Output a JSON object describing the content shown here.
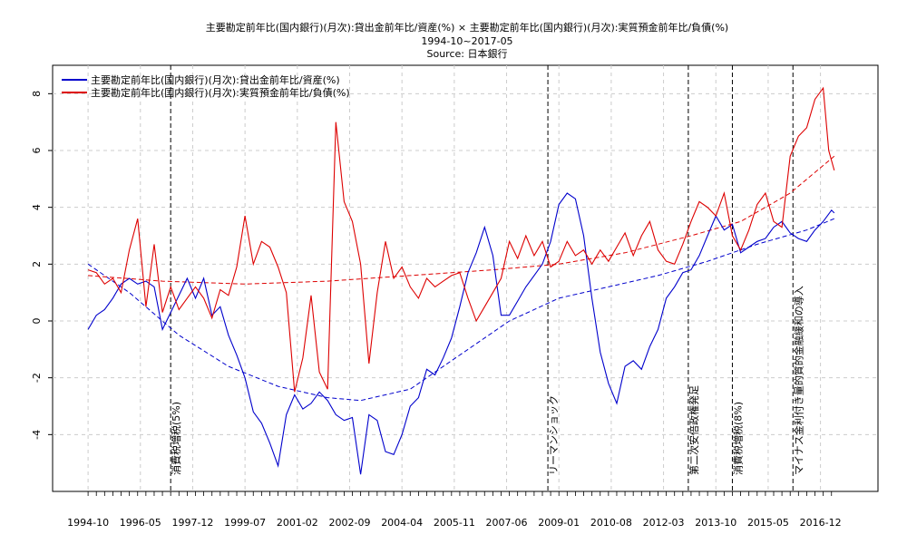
{
  "chart_data": {
    "type": "line",
    "title": "主要勘定前年比(国内銀行)(月次):貸出金前年比/資産(%) × 主要勘定前年比(国内銀行)(月次):実質預金前年比/負債(%)",
    "subtitle": "1994-10~2017-05",
    "source": "Source: 日本銀行",
    "xlabel": "",
    "ylabel": "",
    "x_range": [
      "1994-10",
      "2017-05"
    ],
    "ylim": [
      -6,
      9
    ],
    "y_ticks": [
      -4,
      -2,
      0,
      2,
      4,
      6,
      8
    ],
    "x_tick_labels": [
      "1994-10",
      "1996-05",
      "1997-12",
      "1999-07",
      "2001-02",
      "2002-09",
      "2004-04",
      "2005-11",
      "2007-06",
      "2009-01",
      "2010-08",
      "2012-03",
      "2013-10",
      "2015-05",
      "2016-12"
    ],
    "grid": true,
    "legend_position": "top-left",
    "colors": {
      "loans": "#0000cc",
      "deposits": "#dd0000",
      "event": "#000000",
      "grid": "#cccccc"
    },
    "series": [
      {
        "key": "loans",
        "name": "主要勘定前年比(国内銀行)(月次):貸出金前年比/資産(%)",
        "points": [
          [
            "1994-10",
            -0.3
          ],
          [
            "1995-01",
            0.2
          ],
          [
            "1995-04",
            0.4
          ],
          [
            "1995-07",
            0.8
          ],
          [
            "1995-10",
            1.3
          ],
          [
            "1996-01",
            1.5
          ],
          [
            "1996-04",
            1.3
          ],
          [
            "1996-07",
            1.4
          ],
          [
            "1996-10",
            1.2
          ],
          [
            "1997-01",
            -0.3
          ],
          [
            "1997-04",
            0.3
          ],
          [
            "1997-07",
            0.9
          ],
          [
            "1997-10",
            1.5
          ],
          [
            "1998-01",
            0.8
          ],
          [
            "1998-04",
            1.5
          ],
          [
            "1998-07",
            0.2
          ],
          [
            "1998-10",
            0.5
          ],
          [
            "1999-01",
            -0.5
          ],
          [
            "1999-04",
            -1.2
          ],
          [
            "1999-07",
            -2.0
          ],
          [
            "1999-10",
            -3.2
          ],
          [
            "2000-01",
            -3.6
          ],
          [
            "2000-04",
            -4.3
          ],
          [
            "2000-07",
            -5.1
          ],
          [
            "2000-10",
            -3.3
          ],
          [
            "2001-01",
            -2.6
          ],
          [
            "2001-04",
            -3.1
          ],
          [
            "2001-07",
            -2.9
          ],
          [
            "2001-10",
            -2.5
          ],
          [
            "2002-01",
            -2.8
          ],
          [
            "2002-04",
            -3.3
          ],
          [
            "2002-07",
            -3.5
          ],
          [
            "2002-10",
            -3.4
          ],
          [
            "2003-01",
            -5.4
          ],
          [
            "2003-04",
            -3.3
          ],
          [
            "2003-07",
            -3.5
          ],
          [
            "2003-10",
            -4.6
          ],
          [
            "2004-01",
            -4.7
          ],
          [
            "2004-04",
            -4.0
          ],
          [
            "2004-07",
            -3.0
          ],
          [
            "2004-10",
            -2.7
          ],
          [
            "2005-01",
            -1.7
          ],
          [
            "2005-04",
            -1.9
          ],
          [
            "2005-07",
            -1.3
          ],
          [
            "2005-10",
            -0.6
          ],
          [
            "2006-01",
            0.5
          ],
          [
            "2006-04",
            1.7
          ],
          [
            "2006-07",
            2.4
          ],
          [
            "2006-10",
            3.3
          ],
          [
            "2007-01",
            2.3
          ],
          [
            "2007-04",
            0.2
          ],
          [
            "2007-07",
            0.2
          ],
          [
            "2007-10",
            0.7
          ],
          [
            "2008-01",
            1.2
          ],
          [
            "2008-04",
            1.6
          ],
          [
            "2008-07",
            2.0
          ],
          [
            "2008-10",
            2.8
          ],
          [
            "2009-01",
            4.1
          ],
          [
            "2009-04",
            4.5
          ],
          [
            "2009-07",
            4.3
          ],
          [
            "2009-10",
            3.0
          ],
          [
            "2010-01",
            0.8
          ],
          [
            "2010-04",
            -1.1
          ],
          [
            "2010-07",
            -2.2
          ],
          [
            "2010-10",
            -2.9
          ],
          [
            "2011-01",
            -1.6
          ],
          [
            "2011-04",
            -1.4
          ],
          [
            "2011-07",
            -1.7
          ],
          [
            "2011-10",
            -0.9
          ],
          [
            "2012-01",
            -0.3
          ],
          [
            "2012-04",
            0.8
          ],
          [
            "2012-07",
            1.2
          ],
          [
            "2012-10",
            1.7
          ],
          [
            "2013-01",
            1.8
          ],
          [
            "2013-04",
            2.3
          ],
          [
            "2013-07",
            3.0
          ],
          [
            "2013-10",
            3.7
          ],
          [
            "2014-01",
            3.2
          ],
          [
            "2014-04",
            3.4
          ],
          [
            "2014-07",
            2.4
          ],
          [
            "2014-10",
            2.6
          ],
          [
            "2015-01",
            2.8
          ],
          [
            "2015-04",
            2.9
          ],
          [
            "2015-07",
            3.3
          ],
          [
            "2015-10",
            3.5
          ],
          [
            "2016-01",
            3.1
          ],
          [
            "2016-04",
            2.9
          ],
          [
            "2016-07",
            2.8
          ],
          [
            "2016-10",
            3.2
          ],
          [
            "2017-01",
            3.5
          ],
          [
            "2017-04",
            3.9
          ],
          [
            "2017-05",
            3.8
          ]
        ]
      },
      {
        "key": "deposits",
        "name": "主要勘定前年比(国内銀行)(月次):実質預金前年比/負債(%)",
        "points": [
          [
            "1994-10",
            1.8
          ],
          [
            "1995-01",
            1.7
          ],
          [
            "1995-04",
            1.3
          ],
          [
            "1995-07",
            1.5
          ],
          [
            "1995-10",
            1.0
          ],
          [
            "1996-01",
            2.5
          ],
          [
            "1996-04",
            3.6
          ],
          [
            "1996-07",
            0.5
          ],
          [
            "1996-10",
            2.7
          ],
          [
            "1997-01",
            0.3
          ],
          [
            "1997-04",
            1.2
          ],
          [
            "1997-07",
            0.4
          ],
          [
            "1997-10",
            0.8
          ],
          [
            "1998-01",
            1.2
          ],
          [
            "1998-04",
            0.8
          ],
          [
            "1998-07",
            0.1
          ],
          [
            "1998-10",
            1.1
          ],
          [
            "1999-01",
            0.9
          ],
          [
            "1999-04",
            1.9
          ],
          [
            "1999-07",
            3.7
          ],
          [
            "1999-10",
            2.0
          ],
          [
            "2000-01",
            2.8
          ],
          [
            "2000-04",
            2.6
          ],
          [
            "2000-07",
            1.9
          ],
          [
            "2000-10",
            1.0
          ],
          [
            "2001-01",
            -2.5
          ],
          [
            "2001-04",
            -1.3
          ],
          [
            "2001-07",
            0.9
          ],
          [
            "2001-10",
            -1.8
          ],
          [
            "2002-01",
            -2.4
          ],
          [
            "2002-04",
            7.0
          ],
          [
            "2002-07",
            4.2
          ],
          [
            "2002-10",
            3.5
          ],
          [
            "2003-01",
            2.0
          ],
          [
            "2003-04",
            -1.5
          ],
          [
            "2003-07",
            1.0
          ],
          [
            "2003-10",
            2.8
          ],
          [
            "2004-01",
            1.5
          ],
          [
            "2004-04",
            1.9
          ],
          [
            "2004-07",
            1.2
          ],
          [
            "2004-10",
            0.8
          ],
          [
            "2005-01",
            1.5
          ],
          [
            "2005-04",
            1.2
          ],
          [
            "2005-07",
            1.4
          ],
          [
            "2005-10",
            1.6
          ],
          [
            "2006-01",
            1.7
          ],
          [
            "2006-04",
            0.8
          ],
          [
            "2006-07",
            0.0
          ],
          [
            "2006-10",
            0.5
          ],
          [
            "2007-01",
            1.0
          ],
          [
            "2007-04",
            1.5
          ],
          [
            "2007-07",
            2.8
          ],
          [
            "2007-10",
            2.2
          ],
          [
            "2008-01",
            3.0
          ],
          [
            "2008-04",
            2.3
          ],
          [
            "2008-07",
            2.8
          ],
          [
            "2008-10",
            1.9
          ],
          [
            "2009-01",
            2.1
          ],
          [
            "2009-04",
            2.8
          ],
          [
            "2009-07",
            2.3
          ],
          [
            "2009-10",
            2.5
          ],
          [
            "2010-01",
            2.0
          ],
          [
            "2010-04",
            2.5
          ],
          [
            "2010-07",
            2.1
          ],
          [
            "2010-10",
            2.6
          ],
          [
            "2011-01",
            3.1
          ],
          [
            "2011-04",
            2.3
          ],
          [
            "2011-07",
            3.0
          ],
          [
            "2011-10",
            3.5
          ],
          [
            "2012-01",
            2.5
          ],
          [
            "2012-04",
            2.1
          ],
          [
            "2012-07",
            2.0
          ],
          [
            "2012-10",
            2.7
          ],
          [
            "2013-01",
            3.5
          ],
          [
            "2013-04",
            4.2
          ],
          [
            "2013-07",
            4.0
          ],
          [
            "2013-10",
            3.7
          ],
          [
            "2014-01",
            4.5
          ],
          [
            "2014-04",
            3.0
          ],
          [
            "2014-07",
            2.5
          ],
          [
            "2014-10",
            3.2
          ],
          [
            "2015-01",
            4.1
          ],
          [
            "2015-04",
            4.5
          ],
          [
            "2015-07",
            3.5
          ],
          [
            "2015-10",
            3.3
          ],
          [
            "2016-01",
            5.8
          ],
          [
            "2016-04",
            6.5
          ],
          [
            "2016-07",
            6.8
          ],
          [
            "2016-10",
            7.8
          ],
          [
            "2017-01",
            8.2
          ],
          [
            "2017-03",
            6.0
          ],
          [
            "2017-05",
            5.3
          ]
        ]
      }
    ],
    "trend_lines": [
      {
        "key": "loans",
        "style": "dashed",
        "points": [
          [
            "1994-10",
            2.0
          ],
          [
            "1996-01",
            1.0
          ],
          [
            "1997-07",
            -0.5
          ],
          [
            "1999-01",
            -1.6
          ],
          [
            "2000-07",
            -2.3
          ],
          [
            "2002-01",
            -2.7
          ],
          [
            "2003-01",
            -2.8
          ],
          [
            "2004-07",
            -2.4
          ],
          [
            "2006-01",
            -1.2
          ],
          [
            "2007-07",
            0.0
          ],
          [
            "2009-01",
            0.8
          ],
          [
            "2010-07",
            1.2
          ],
          [
            "2012-01",
            1.6
          ],
          [
            "2013-07",
            2.1
          ],
          [
            "2015-01",
            2.7
          ],
          [
            "2016-07",
            3.2
          ],
          [
            "2017-05",
            3.6
          ]
        ]
      },
      {
        "key": "deposits",
        "style": "dashed",
        "points": [
          [
            "1994-10",
            1.6
          ],
          [
            "1997-01",
            1.4
          ],
          [
            "1999-07",
            1.3
          ],
          [
            "2002-01",
            1.4
          ],
          [
            "2004-07",
            1.6
          ],
          [
            "2007-01",
            1.8
          ],
          [
            "2009-01",
            2.0
          ],
          [
            "2011-01",
            2.4
          ],
          [
            "2013-01",
            3.0
          ],
          [
            "2014-07",
            3.5
          ],
          [
            "2016-01",
            4.5
          ],
          [
            "2017-05",
            5.8
          ]
        ]
      }
    ],
    "events": [
      {
        "date": "1997-04",
        "label": "消費税増税(5%)"
      },
      {
        "date": "2008-09",
        "label": "リーマンショック"
      },
      {
        "date": "2012-12",
        "label": "第二次安倍政権発足"
      },
      {
        "date": "2014-04",
        "label": "消費税増税(8%)"
      },
      {
        "date": "2016-02",
        "label": "マイナス金利付き量的質的金融緩和の導入"
      }
    ]
  }
}
